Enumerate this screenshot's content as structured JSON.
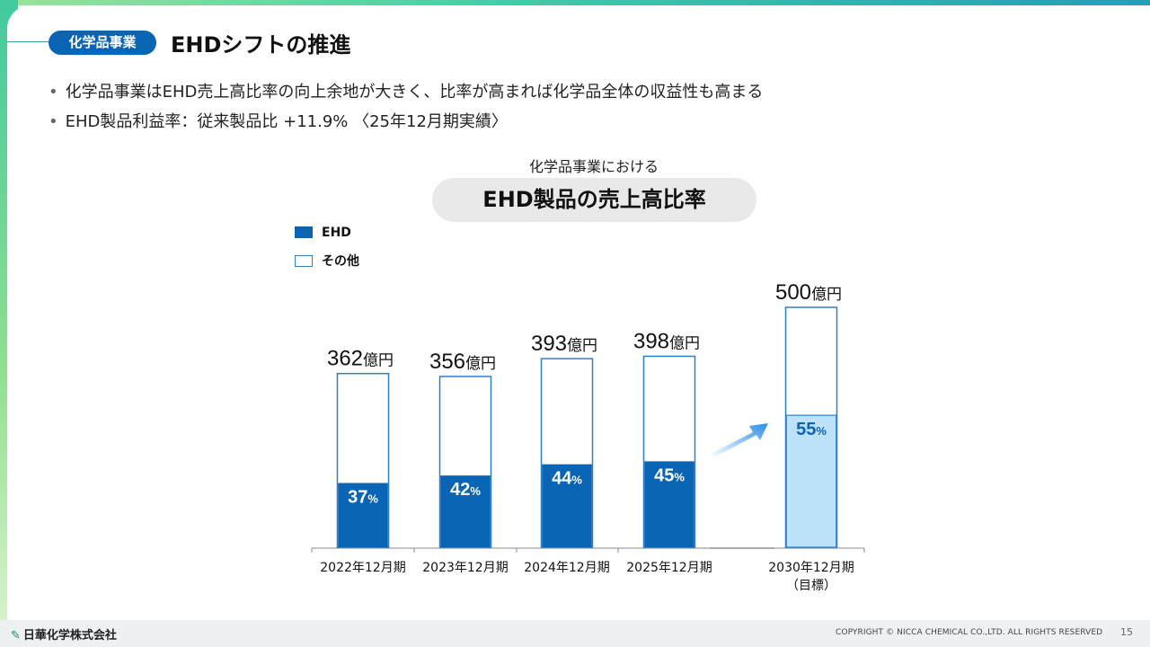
{
  "header": {
    "tag": "化学品事業",
    "title": "EHDシフトの推進"
  },
  "bullets": [
    "化学品事業はEHD売上高比率の向上余地が大きく、比率が高まれば化学品全体の収益性も高まる",
    "EHD製品利益率：従来製品比 +11.9% 〈25年12月期実績〉"
  ],
  "colors": {
    "ehd": "#0a64b4",
    "target": "#bfe2fb",
    "outline": "#2f7fc8",
    "tag_bg": "#0a64b4"
  },
  "chart_data": {
    "type": "bar",
    "subtitle": "化学品事業における",
    "title": "EHD製品の売上高比率",
    "legend": [
      {
        "name": "EHD",
        "style": "filled"
      },
      {
        "name": "その他",
        "style": "outline"
      }
    ],
    "legend_position": "top-left",
    "categories": [
      "2022年12月期",
      "2023年12月期",
      "2024年12月期",
      "2025年12月期",
      "2030年12月期"
    ],
    "category_notes": [
      "",
      "",
      "",
      "",
      "（目標）"
    ],
    "totals": [
      362,
      356,
      393,
      398,
      500
    ],
    "total_unit": "億円",
    "ehd_ratio": [
      37,
      42,
      44,
      45,
      55
    ],
    "ratio_unit": "%",
    "target_index": 4,
    "ylim": [
      0,
      500
    ],
    "grid": false
  },
  "footer": {
    "logo_text": "日華化学株式会社",
    "copyright": "COPYRIGHT © NICCA CHEMICAL CO.,LTD. ALL RIGHTS RESERVED",
    "page_number": "15"
  }
}
